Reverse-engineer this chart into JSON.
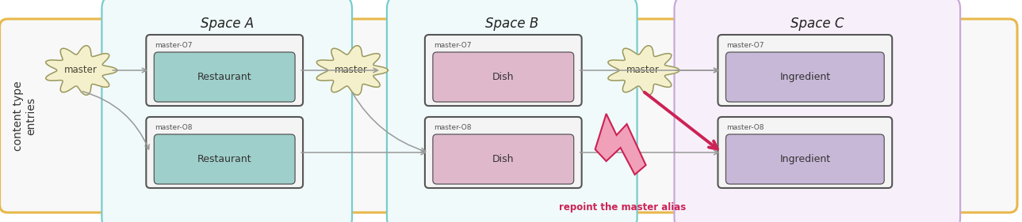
{
  "fig_width": 12.89,
  "fig_height": 2.81,
  "bg_color": "#ffffff",
  "outer_rect_color": "#e8b84b",
  "outer_rect_fill": "#f8f8f8",
  "space_a_color": "#78cccc",
  "space_b_color": "#78cccc",
  "space_c_color": "#c8a8d8",
  "space_a_fill": "#f0fafa",
  "space_b_fill": "#f0fafa",
  "space_c_fill": "#f7f0fa",
  "space_labels": [
    "Space A",
    "Space B",
    "Space C"
  ],
  "space_label_font": 12,
  "entry_outer_fill": "#f4f4f4",
  "entry_outer_stroke": "#555555",
  "entry_a_fill": "#9ecfca",
  "entry_b_fill": "#e0b8cc",
  "entry_c_fill": "#c8b8d8",
  "entry_label_a": "Restaurant",
  "entry_label_b": "Dish",
  "entry_label_c": "Ingredient",
  "cloud_fill": "#f5f0cc",
  "cloud_stroke": "#999960",
  "cloud_label": "master",
  "vertical_label": "content type\nentries",
  "annotation_text": "repoint the master alias",
  "annotation_color": "#cc2255",
  "arrow_color": "#cc2255",
  "line_color": "#999999",
  "pink_arrow_fill": "#f0a0b8",
  "pink_arrow_edge": "#cc2255"
}
